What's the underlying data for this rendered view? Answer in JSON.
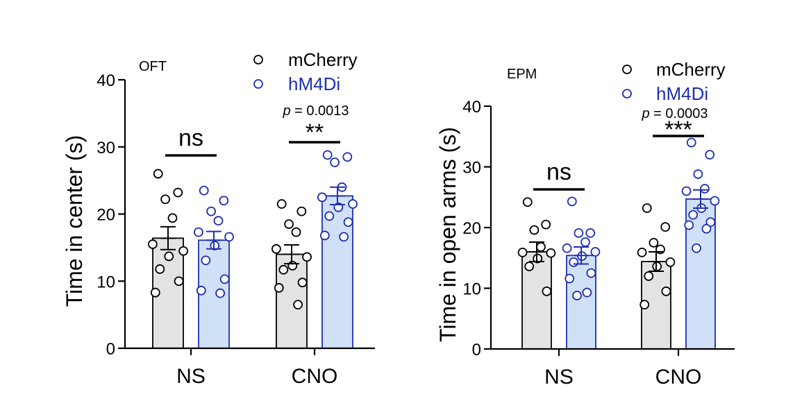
{
  "colors": {
    "mcherry_fill": "#e3e3e3",
    "mcherry_stroke": "#000000",
    "hm4di_fill": "#cfe0f7",
    "hm4di_stroke": "#1f2fb0"
  },
  "chart_data": [
    {
      "type": "bar",
      "title": "OFT",
      "ylabel": "Time in center (s)",
      "categories": [
        "NS",
        "CNO"
      ],
      "ylim": [
        0,
        40
      ],
      "yticks": [
        0,
        10,
        20,
        30,
        40
      ],
      "legend_placement": "top-right",
      "series": [
        {
          "name": "mCherry",
          "values": [
            16.4,
            14.0
          ],
          "sem": [
            1.7,
            1.4
          ],
          "points": [
            [
              26.0,
              23.2,
              22.2,
              19.4,
              15.5,
              14.5,
              13.7,
              11.8,
              10.0,
              8.3
            ],
            [
              21.5,
              20.4,
              18.5,
              17.3,
              14.8,
              13.6,
              12.3,
              11.7,
              9.8,
              9.0,
              6.5
            ]
          ]
        },
        {
          "name": "hM4Di",
          "values": [
            16.1,
            22.7
          ],
          "sem": [
            1.3,
            1.3
          ],
          "points": [
            [
              23.5,
              22.0,
              20.4,
              19.0,
              17.3,
              16.6,
              15.3,
              13.1,
              10.3,
              8.6,
              8.2
            ],
            [
              28.8,
              28.5,
              27.7,
              24.0,
              22.5,
              21.5,
              21.0,
              19.7,
              18.8,
              16.8,
              16.6
            ]
          ]
        }
      ],
      "comparisons": [
        {
          "category": "NS",
          "label": "ns",
          "p": ""
        },
        {
          "category": "CNO",
          "label": "**",
          "p": "0.0013"
        }
      ]
    },
    {
      "type": "bar",
      "title": "EPM",
      "ylabel": "Time in open arms (s)",
      "categories": [
        "NS",
        "CNO"
      ],
      "ylim": [
        0,
        40
      ],
      "yticks": [
        0,
        10,
        20,
        30,
        40
      ],
      "legend_placement": "top-right",
      "series": [
        {
          "name": "mCherry",
          "values": [
            16.0,
            14.4
          ],
          "sem": [
            1.6,
            1.6
          ],
          "points": [
            [
              24.2,
              20.5,
              19.6,
              16.8,
              15.9,
              15.8,
              14.9,
              13.6,
              9.5
            ],
            [
              23.2,
              20.1,
              17.5,
              16.4,
              15.9,
              14.3,
              13.6,
              12.0,
              9.5,
              7.3
            ]
          ]
        },
        {
          "name": "hM4Di",
          "values": [
            15.4,
            24.7
          ],
          "sem": [
            1.4,
            1.5
          ],
          "points": [
            [
              24.3,
              19.1,
              19.1,
              17.6,
              16.6,
              16.0,
              15.3,
              14.3,
              12.5,
              11.6,
              9.3,
              8.8
            ],
            [
              34.0,
              32.0,
              28.8,
              26.4,
              26.0,
              24.4,
              23.2,
              22.1,
              20.9,
              20.4,
              19.8,
              16.6
            ]
          ]
        }
      ],
      "comparisons": [
        {
          "category": "NS",
          "label": "ns",
          "p": ""
        },
        {
          "category": "CNO",
          "label": "***",
          "p": "0.0003"
        }
      ]
    }
  ]
}
